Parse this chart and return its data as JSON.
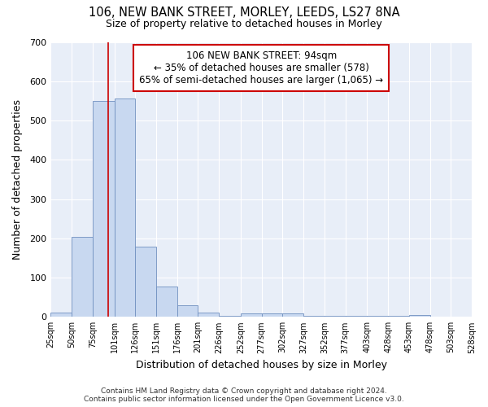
{
  "title1": "106, NEW BANK STREET, MORLEY, LEEDS, LS27 8NA",
  "title2": "Size of property relative to detached houses in Morley",
  "xlabel": "Distribution of detached houses by size in Morley",
  "ylabel": "Number of detached properties",
  "annotation_line1": "106 NEW BANK STREET: 94sqm",
  "annotation_line2": "← 35% of detached houses are smaller (578)",
  "annotation_line3": "65% of semi-detached houses are larger (1,065) →",
  "bar_color": "#c8d8f0",
  "bar_edge_color": "#7090c0",
  "vline_color": "#cc0000",
  "vline_x": 94,
  "bin_edges": [
    25,
    50,
    75,
    101,
    126,
    151,
    176,
    201,
    226,
    252,
    277,
    302,
    327,
    352,
    377,
    403,
    428,
    453,
    478,
    503,
    528
  ],
  "bar_heights": [
    10,
    203,
    550,
    555,
    178,
    77,
    30,
    10,
    2,
    8,
    8,
    8,
    2,
    2,
    2,
    2,
    2,
    5,
    0,
    0,
    0
  ],
  "ylim": [
    0,
    700
  ],
  "yticks": [
    0,
    100,
    200,
    300,
    400,
    500,
    600,
    700
  ],
  "plot_bg_color": "#e8eef8",
  "fig_bg_color": "#ffffff",
  "grid_color": "#ffffff",
  "annotation_box_color": "#ffffff",
  "annotation_box_edge": "#cc0000",
  "footer": "Contains HM Land Registry data © Crown copyright and database right 2024.\nContains public sector information licensed under the Open Government Licence v3.0.",
  "figsize": [
    6.0,
    5.0
  ],
  "dpi": 100
}
